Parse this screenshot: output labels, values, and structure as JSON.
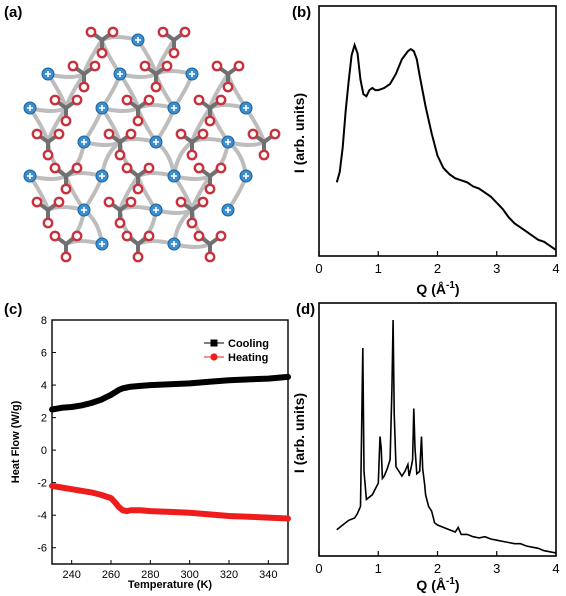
{
  "panels": {
    "a": {
      "label": "(a)"
    },
    "b": {
      "label": "(b)"
    },
    "c": {
      "label": "(c)"
    },
    "d": {
      "label": "(d)"
    }
  },
  "colors": {
    "cation": "#3a8fd1",
    "anion": "#c8323c",
    "backbone": "#707070",
    "tether": "#bdbdbd",
    "heating": "#ee1c1c",
    "cooling": "#000000"
  },
  "chart_data": [
    {
      "panel": "b",
      "type": "line",
      "xlabel_main": "Q (",
      "xlabel_unit": "Å",
      "xlabel_exp": "-1",
      "xlabel_close": ")",
      "ylabel": "I (arb. units)",
      "xlim": [
        0,
        4
      ],
      "xticks": [
        "0",
        "1",
        "2",
        "3",
        "4"
      ],
      "yticks_shown": false,
      "series": [
        {
          "x": [
            0.3,
            0.35,
            0.4,
            0.45,
            0.5,
            0.55,
            0.6,
            0.65,
            0.7,
            0.75,
            0.8,
            0.85,
            0.9,
            0.95,
            1.0,
            1.1,
            1.2,
            1.3,
            1.4,
            1.5,
            1.55,
            1.6,
            1.65,
            1.7,
            1.8,
            1.9,
            2.0,
            2.1,
            2.2,
            2.3,
            2.4,
            2.5,
            2.6,
            2.7,
            2.8,
            2.9,
            3.0,
            3.1,
            3.2,
            3.3,
            3.4,
            3.5,
            3.6,
            3.7,
            3.8,
            3.9,
            4.0
          ],
          "y": [
            0.33,
            0.38,
            0.5,
            0.68,
            0.82,
            0.95,
            1.0,
            0.96,
            0.83,
            0.76,
            0.75,
            0.78,
            0.79,
            0.78,
            0.78,
            0.79,
            0.81,
            0.86,
            0.93,
            0.97,
            0.98,
            0.97,
            0.93,
            0.85,
            0.7,
            0.57,
            0.46,
            0.4,
            0.37,
            0.35,
            0.34,
            0.33,
            0.31,
            0.3,
            0.28,
            0.26,
            0.23,
            0.2,
            0.16,
            0.13,
            0.11,
            0.09,
            0.07,
            0.05,
            0.04,
            0.02,
            0.0
          ]
        }
      ]
    },
    {
      "panel": "c",
      "type": "line",
      "xlabel": "Temperature (K)",
      "ylabel": "Heat Flow (W/g)",
      "xlim": [
        230,
        350
      ],
      "ylim": [
        -7,
        8
      ],
      "xticks": [
        240,
        260,
        280,
        300,
        320,
        340
      ],
      "yticks": [
        -6,
        -4,
        -2,
        0,
        2,
        4,
        6,
        8
      ],
      "legend_position": "top-right",
      "series": [
        {
          "name": "Cooling",
          "color": "#000000",
          "x": [
            230,
            235,
            240,
            245,
            250,
            255,
            260,
            262,
            264,
            266,
            268,
            270,
            275,
            280,
            290,
            300,
            310,
            320,
            330,
            340,
            350
          ],
          "y": [
            2.5,
            2.6,
            2.65,
            2.75,
            2.9,
            3.1,
            3.4,
            3.55,
            3.7,
            3.8,
            3.85,
            3.9,
            3.95,
            4.0,
            4.05,
            4.1,
            4.2,
            4.3,
            4.35,
            4.4,
            4.5
          ]
        },
        {
          "name": "Heating",
          "color": "#ee1c1c",
          "x": [
            230,
            235,
            240,
            245,
            250,
            255,
            260,
            262,
            264,
            266,
            268,
            270,
            275,
            280,
            290,
            300,
            310,
            320,
            330,
            340,
            350
          ],
          "y": [
            -2.2,
            -2.3,
            -2.4,
            -2.5,
            -2.6,
            -2.75,
            -2.95,
            -3.2,
            -3.5,
            -3.7,
            -3.75,
            -3.7,
            -3.7,
            -3.75,
            -3.8,
            -3.85,
            -3.95,
            -4.05,
            -4.1,
            -4.15,
            -4.2
          ]
        }
      ]
    },
    {
      "panel": "d",
      "type": "line",
      "xlabel_main": "Q (",
      "xlabel_unit": "Å",
      "xlabel_exp": "-1",
      "xlabel_close": ")",
      "ylabel": "I (arb. units)",
      "xlim": [
        0,
        4
      ],
      "xticks": [
        "0",
        "1",
        "2",
        "3",
        "4"
      ],
      "yticks_shown": false,
      "series": [
        {
          "x": [
            0.3,
            0.4,
            0.5,
            0.6,
            0.65,
            0.7,
            0.72,
            0.74,
            0.76,
            0.8,
            0.9,
            1.0,
            1.03,
            1.05,
            1.07,
            1.1,
            1.15,
            1.2,
            1.23,
            1.25,
            1.27,
            1.3,
            1.35,
            1.4,
            1.45,
            1.5,
            1.52,
            1.55,
            1.58,
            1.6,
            1.62,
            1.65,
            1.7,
            1.73,
            1.75,
            1.78,
            1.8,
            1.85,
            1.9,
            1.93,
            1.95,
            2.0,
            2.1,
            2.2,
            2.3,
            2.35,
            2.4,
            2.5,
            2.6,
            2.7,
            2.8,
            2.9,
            3.0,
            3.1,
            3.2,
            3.3,
            3.4,
            3.5,
            3.6,
            3.7,
            3.8,
            3.9,
            4.0
          ],
          "y": [
            0.1,
            0.12,
            0.14,
            0.15,
            0.17,
            0.2,
            0.55,
            0.88,
            0.35,
            0.23,
            0.25,
            0.3,
            0.5,
            0.45,
            0.32,
            0.33,
            0.36,
            0.4,
            0.7,
            1.0,
            0.6,
            0.37,
            0.35,
            0.33,
            0.35,
            0.38,
            0.33,
            0.36,
            0.4,
            0.62,
            0.45,
            0.34,
            0.35,
            0.5,
            0.36,
            0.3,
            0.25,
            0.2,
            0.18,
            0.15,
            0.13,
            0.12,
            0.11,
            0.1,
            0.09,
            0.11,
            0.08,
            0.08,
            0.07,
            0.065,
            0.07,
            0.06,
            0.055,
            0.05,
            0.045,
            0.04,
            0.04,
            0.03,
            0.025,
            0.02,
            0.01,
            0.005,
            0.0
          ]
        }
      ]
    }
  ]
}
